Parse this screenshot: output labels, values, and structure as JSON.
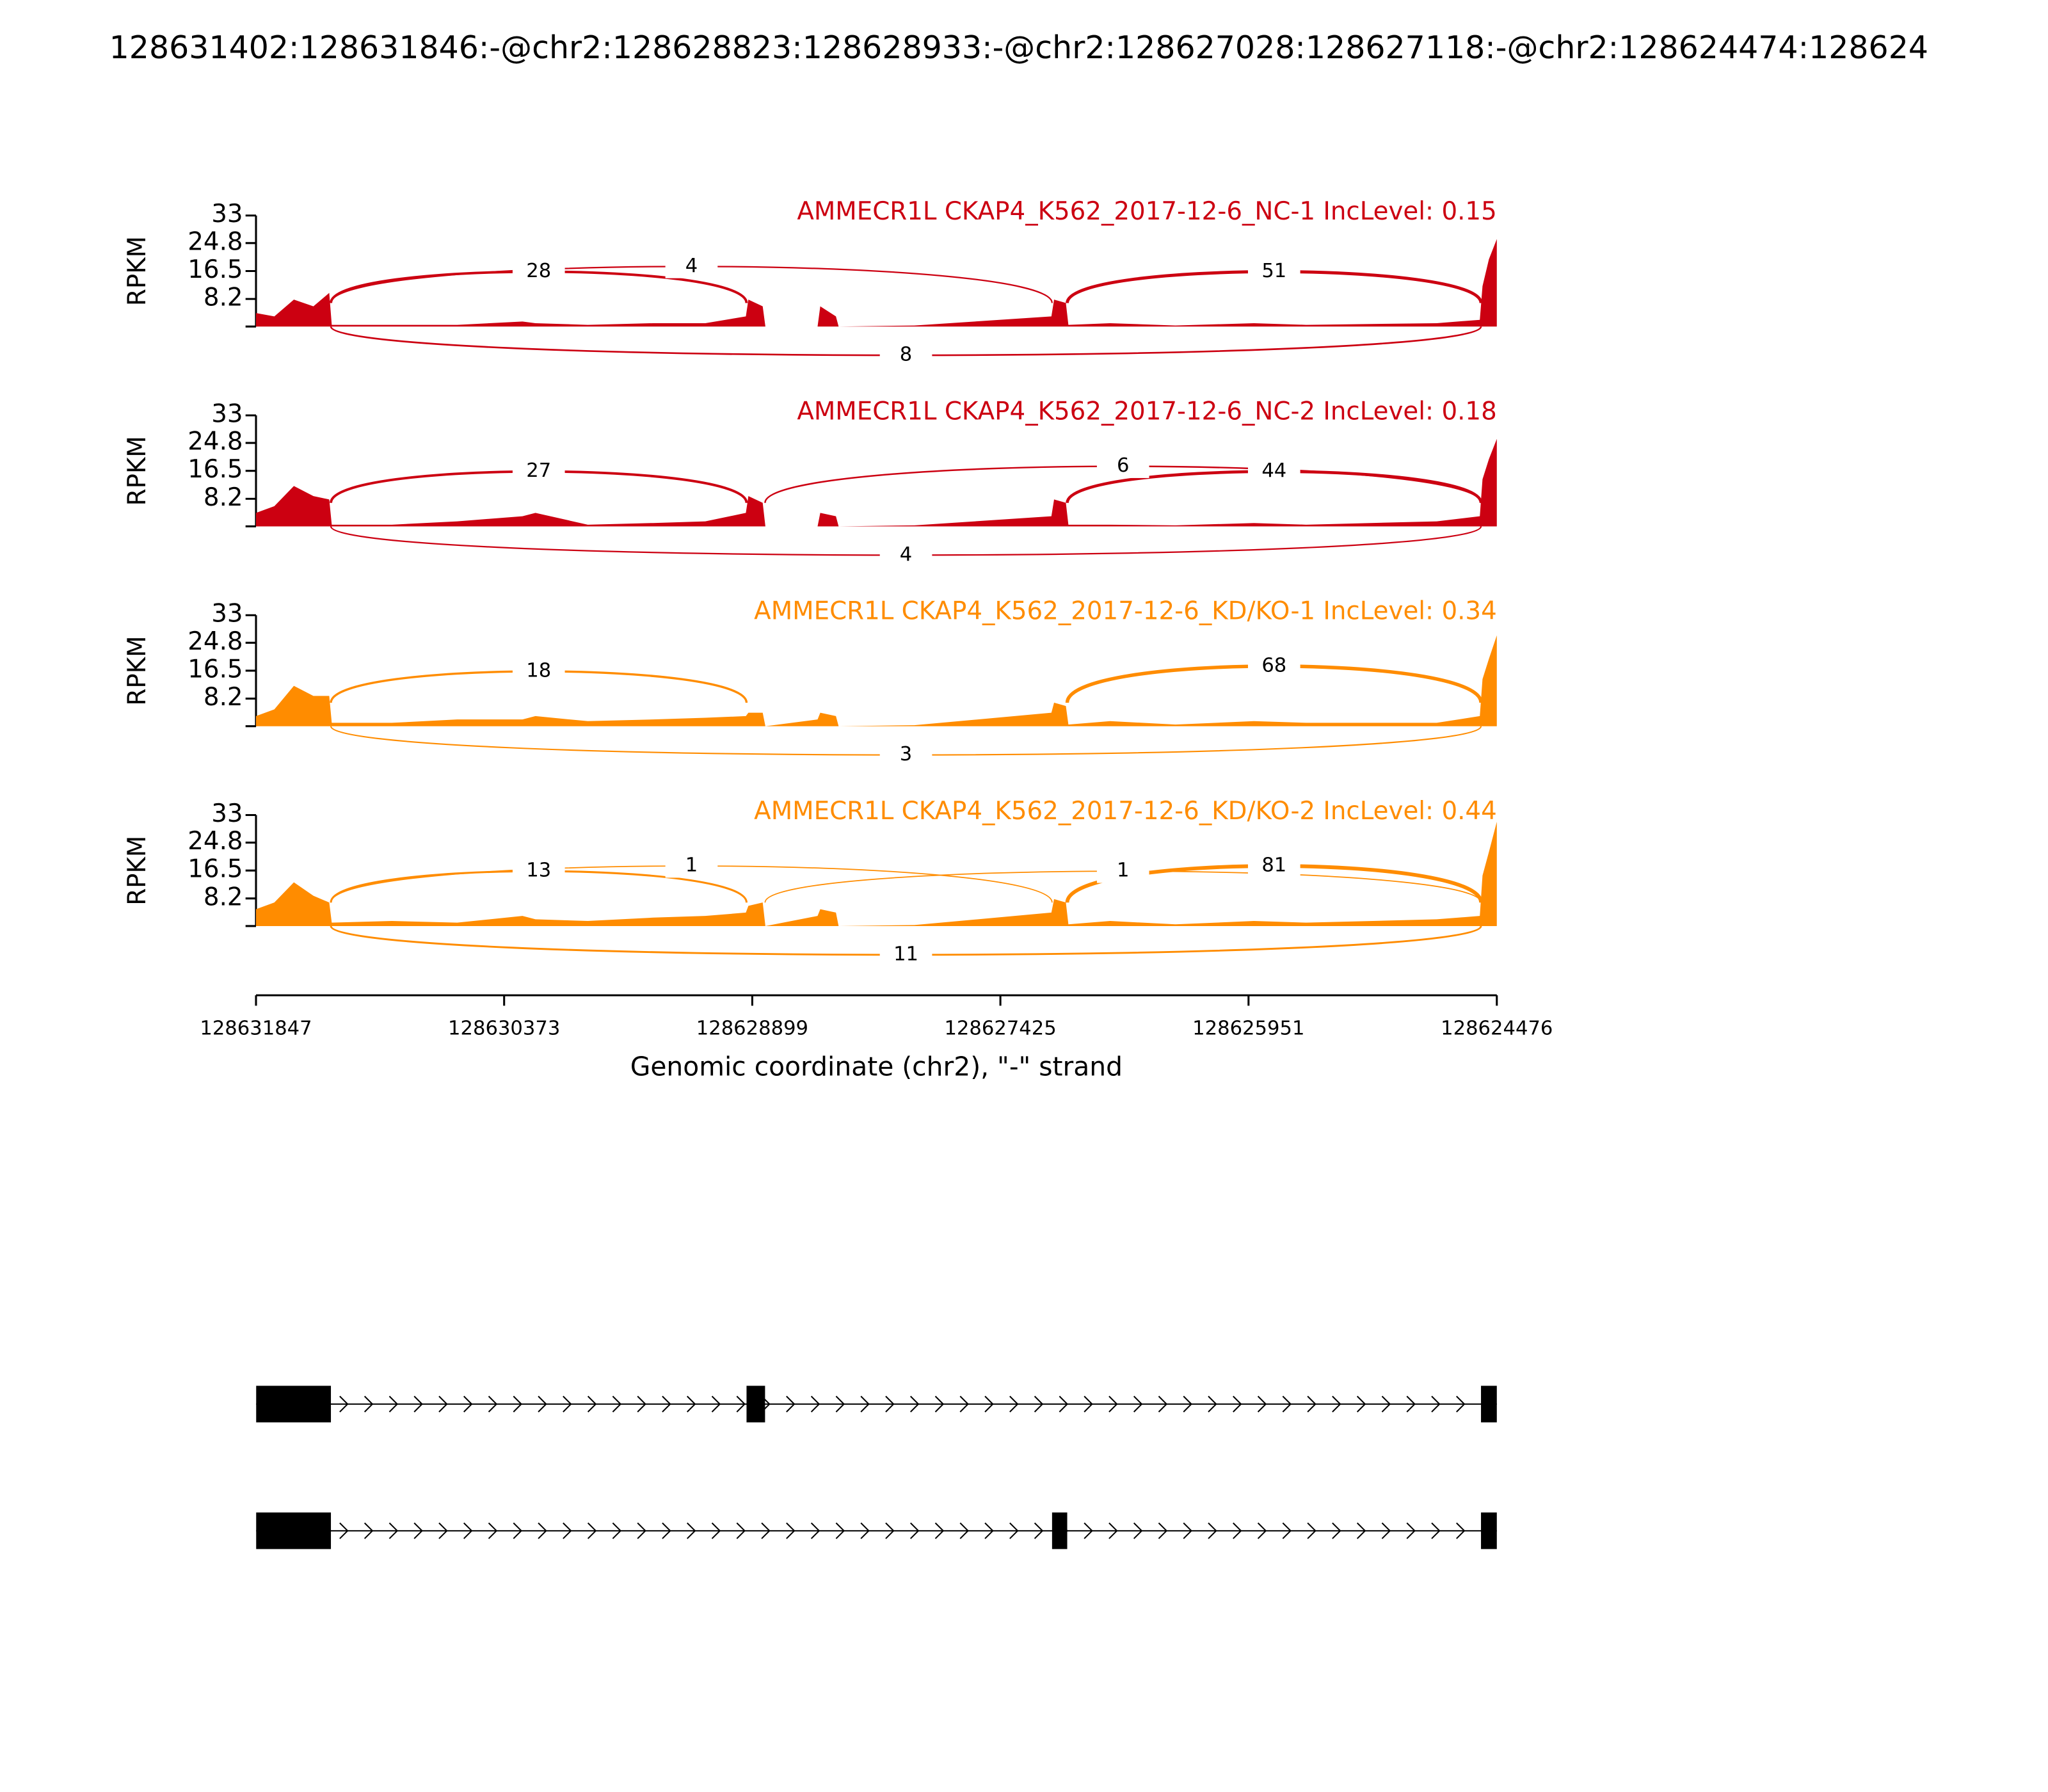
{
  "chart_data": {
    "type": "sashimi",
    "title": "128631402:128631846:-@chr2:128628823:128628933:-@chr2:128627028:128627118:-@chr2:128624474:128624",
    "xlim": [
      128631847,
      128624476
    ],
    "xticks": [
      128631847,
      128630373,
      128628899,
      128627425,
      128625951,
      128624476
    ],
    "xlabel": "Genomic coordinate (chr2), \"-\" strand",
    "panels": [
      {
        "title": "AMMECR1L CKAP4_K562_2017-12-6_NC-1 IncLevel: 0.15",
        "color": "#cc0011",
        "ylabel": "RPKM",
        "ylim": [
          0,
          33
        ],
        "yticks": [
          8.2,
          16.5,
          24.8,
          33
        ],
        "x": [
          128631847,
          128631738,
          128631622,
          128631506,
          128631412,
          128631397,
          128631040,
          128630652,
          128630264,
          128630187,
          128629876,
          128629488,
          128629178,
          128628937,
          128628922,
          128628837,
          128628821,
          128628511,
          128628495,
          128628402,
          128628386,
          128627936,
          128627122,
          128627106,
          128627036,
          128627021,
          128626773,
          128626385,
          128625919,
          128625609,
          128624833,
          128624577,
          128624561,
          128624523,
          128624476
        ],
        "values": [
          4,
          3,
          8,
          6,
          10,
          0.5,
          0.5,
          0.5,
          1.5,
          1,
          0.5,
          1,
          1,
          3,
          8,
          6,
          0,
          0,
          6,
          3,
          0,
          0.3,
          3,
          8,
          7,
          0.5,
          1,
          0.3,
          1,
          0.5,
          1,
          2,
          12,
          20,
          26
        ],
        "junctions": [
          {
            "start": 128631402,
            "end": 128628933,
            "count": 28,
            "side": "above"
          },
          {
            "start": 128631402,
            "end": 128627118,
            "count": 4,
            "side": "above"
          },
          {
            "start": 128627028,
            "end": 128624570,
            "count": 51,
            "side": "above"
          },
          {
            "start": 128631402,
            "end": 128624570,
            "count": 8,
            "side": "below"
          }
        ]
      },
      {
        "title": "AMMECR1L CKAP4_K562_2017-12-6_NC-2 IncLevel: 0.18",
        "color": "#cc0011",
        "ylabel": "RPKM",
        "ylim": [
          0,
          33
        ],
        "yticks": [
          8.2,
          16.5,
          24.8,
          33
        ],
        "x": [
          128631847,
          128631738,
          128631622,
          128631506,
          128631412,
          128631397,
          128631040,
          128630652,
          128630264,
          128630187,
          128629876,
          128629488,
          128629178,
          128628937,
          128628922,
          128628837,
          128628821,
          128628511,
          128628495,
          128628402,
          128628386,
          128627936,
          128627122,
          128627106,
          128627036,
          128627021,
          128626773,
          128626385,
          128625919,
          128625609,
          128624833,
          128624577,
          128624561,
          128624523,
          128624476
        ],
        "values": [
          4,
          6,
          12,
          9,
          8,
          0.5,
          0.5,
          1.5,
          3,
          4,
          0.5,
          1,
          1.5,
          4,
          9,
          7,
          0,
          0,
          4,
          3,
          0,
          0.3,
          3,
          8,
          7,
          0.5,
          0.5,
          0.3,
          1,
          0.5,
          1.5,
          3,
          14,
          20,
          26
        ],
        "junctions": [
          {
            "start": 128631402,
            "end": 128628933,
            "count": 27,
            "side": "above"
          },
          {
            "start": 128628823,
            "end": 128624570,
            "count": 6,
            "side": "above"
          },
          {
            "start": 128627028,
            "end": 128624570,
            "count": 44,
            "side": "above"
          },
          {
            "start": 128631402,
            "end": 128624570,
            "count": 4,
            "side": "below"
          }
        ]
      },
      {
        "title": "AMMECR1L CKAP4_K562_2017-12-6_KD/KO-1 IncLevel: 0.34",
        "color": "#ff8c00",
        "ylabel": "RPKM",
        "ylim": [
          0,
          33
        ],
        "yticks": [
          8.2,
          16.5,
          24.8,
          33
        ],
        "x": [
          128631847,
          128631738,
          128631622,
          128631506,
          128631412,
          128631397,
          128631040,
          128630652,
          128630264,
          128630187,
          128629876,
          128629488,
          128629178,
          128628937,
          128628922,
          128628837,
          128628821,
          128628511,
          128628495,
          128628402,
          128628386,
          128627936,
          128627122,
          128627106,
          128627036,
          128627021,
          128626773,
          128626385,
          128625919,
          128625609,
          128624833,
          128624577,
          128624561,
          128624523,
          128624476
        ],
        "values": [
          3,
          5,
          12,
          9,
          9,
          1,
          1,
          2,
          2,
          3,
          1.5,
          2,
          2.5,
          3,
          4,
          4,
          0,
          2,
          4,
          3,
          0,
          0.3,
          4,
          7,
          6,
          0.5,
          1.5,
          0.5,
          1.5,
          1,
          1,
          3,
          14,
          20,
          27
        ],
        "junctions": [
          {
            "start": 128631402,
            "end": 128628933,
            "count": 18,
            "side": "above"
          },
          {
            "start": 128627028,
            "end": 128624570,
            "count": 68,
            "side": "above"
          },
          {
            "start": 128631402,
            "end": 128624570,
            "count": 3,
            "side": "below"
          }
        ]
      },
      {
        "title": "AMMECR1L CKAP4_K562_2017-12-6_KD/KO-2 IncLevel: 0.44",
        "color": "#ff8c00",
        "ylabel": "RPKM",
        "ylim": [
          0,
          33
        ],
        "yticks": [
          8.2,
          16.5,
          24.8,
          33
        ],
        "x": [
          128631847,
          128631738,
          128631622,
          128631506,
          128631412,
          128631397,
          128631040,
          128630652,
          128630264,
          128630187,
          128629876,
          128629488,
          128629178,
          128628937,
          128628922,
          128628837,
          128628821,
          128628511,
          128628495,
          128628402,
          128628386,
          128627936,
          128627122,
          128627106,
          128627036,
          128627021,
          128626773,
          128626385,
          128625919,
          128625609,
          128624833,
          128624577,
          128624561,
          128624523,
          128624476
        ],
        "values": [
          5,
          7,
          13,
          9,
          7,
          1,
          1.5,
          1,
          3,
          2,
          1.5,
          2.5,
          3,
          4,
          6,
          7,
          0,
          3,
          5,
          4,
          0,
          0.3,
          4,
          8,
          7,
          0.5,
          1.5,
          0.5,
          1.5,
          1,
          2,
          3,
          15,
          22,
          31
        ],
        "junctions": [
          {
            "start": 128631402,
            "end": 128628933,
            "count": 13,
            "side": "above"
          },
          {
            "start": 128631402,
            "end": 128627118,
            "count": 1,
            "side": "above"
          },
          {
            "start": 128628823,
            "end": 128624570,
            "count": 1,
            "side": "above"
          },
          {
            "start": 128627028,
            "end": 128624570,
            "count": 81,
            "side": "above"
          },
          {
            "start": 128631402,
            "end": 128624570,
            "count": 11,
            "side": "below"
          }
        ]
      }
    ],
    "transcripts": [
      {
        "exons": [
          [
            128631846,
            128631402
          ],
          [
            128628933,
            128628823
          ],
          [
            128624570,
            128624476
          ]
        ]
      },
      {
        "exons": [
          [
            128631846,
            128631402
          ],
          [
            128627118,
            128627028
          ],
          [
            128624570,
            128624476
          ]
        ]
      }
    ]
  }
}
